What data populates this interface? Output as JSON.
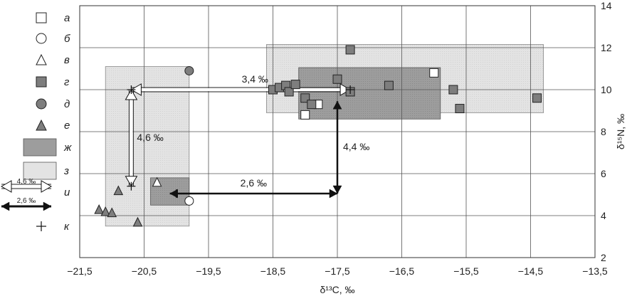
{
  "chart_data": {
    "type": "scatter",
    "xlabel": "δ¹³C, ‰",
    "ylabel": "δ¹⁵N, ‰",
    "xlim": [
      -21.5,
      -13.5
    ],
    "ylim": [
      2,
      14
    ],
    "x_ticks": [
      "−21,5",
      "−20,5",
      "−19,5",
      "−18,5",
      "−17,5",
      "−16,5",
      "−15,5",
      "−14,5",
      "−13,5"
    ],
    "y_ticks": [
      "2",
      "4",
      "6",
      "8",
      "10",
      "12",
      "14"
    ],
    "grid": true,
    "legend_position": "left-outside",
    "legend": [
      {
        "label": "а",
        "symbol": "open-square"
      },
      {
        "label": "б",
        "symbol": "open-circle"
      },
      {
        "label": "в",
        "symbol": "open-triangle"
      },
      {
        "label": "г",
        "symbol": "filled-square"
      },
      {
        "label": "д",
        "symbol": "filled-circle"
      },
      {
        "label": "е",
        "symbol": "filled-triangle"
      },
      {
        "label": "ж",
        "symbol": "dark-box"
      },
      {
        "label": "з",
        "symbol": "light-box"
      },
      {
        "label": "и",
        "symbol": "arrows",
        "arrow_labels": [
          "4,6 ‰",
          "2,6 ‰"
        ]
      },
      {
        "label": "к",
        "symbol": "cross"
      }
    ],
    "series": [
      {
        "name": "а",
        "marker": "open-square",
        "points": [
          [
            -16.0,
            10.8
          ],
          [
            -18.0,
            8.8
          ],
          [
            -17.8,
            9.3
          ]
        ]
      },
      {
        "name": "б",
        "marker": "open-circle",
        "points": [
          [
            -19.8,
            4.7
          ]
        ]
      },
      {
        "name": "в",
        "marker": "open-triangle",
        "points": [
          [
            -20.3,
            5.6
          ]
        ]
      },
      {
        "name": "г",
        "marker": "filled-square",
        "points": [
          [
            -18.5,
            10.0
          ],
          [
            -18.4,
            10.1
          ],
          [
            -18.3,
            10.2
          ],
          [
            -18.25,
            9.9
          ],
          [
            -18.15,
            10.25
          ],
          [
            -18.0,
            9.6
          ],
          [
            -17.9,
            9.3
          ],
          [
            -17.5,
            10.5
          ],
          [
            -17.3,
            11.9
          ],
          [
            -17.3,
            9.9
          ],
          [
            -16.7,
            10.2
          ],
          [
            -15.7,
            10.0
          ],
          [
            -15.6,
            9.1
          ],
          [
            -14.4,
            9.6
          ]
        ]
      },
      {
        "name": "д",
        "marker": "filled-circle",
        "points": [
          [
            -19.8,
            10.9
          ]
        ]
      },
      {
        "name": "е",
        "marker": "filled-triangle",
        "points": [
          [
            -21.2,
            4.3
          ],
          [
            -21.1,
            4.2
          ],
          [
            -21.0,
            4.15
          ],
          [
            -20.9,
            5.2
          ],
          [
            -20.6,
            3.7
          ]
        ]
      },
      {
        "name": "к",
        "marker": "cross",
        "points": [
          [
            -20.7,
            5.4
          ],
          [
            -20.0,
            5.05
          ],
          [
            -17.3,
            10.0
          ],
          [
            -20.7,
            10.0
          ]
        ]
      }
    ],
    "boxes": [
      {
        "name": "з",
        "style": "light",
        "x": [
          -21.1,
          -19.8
        ],
        "y": [
          3.5,
          11.1
        ]
      },
      {
        "name": "з",
        "style": "light",
        "x": [
          -18.6,
          -14.3
        ],
        "y": [
          8.9,
          12.15
        ]
      },
      {
        "name": "ж",
        "style": "dark",
        "x": [
          -20.4,
          -19.8
        ],
        "y": [
          4.5,
          5.8
        ]
      },
      {
        "name": "ж",
        "style": "dark",
        "x": [
          -18.1,
          -15.9
        ],
        "y": [
          8.6,
          11.05
        ]
      }
    ],
    "arrows": [
      {
        "label": "3,4 ‰",
        "style": "open",
        "from": [
          -20.7,
          10.0
        ],
        "to": [
          -17.3,
          10.0
        ]
      },
      {
        "label": "4,6 ‰",
        "style": "open",
        "from": [
          -20.7,
          5.4
        ],
        "to": [
          -20.7,
          10.0
        ]
      },
      {
        "label": "2,6 ‰",
        "style": "solid",
        "from": [
          -20.1,
          5.05
        ],
        "to": [
          -17.5,
          5.05
        ]
      },
      {
        "label": "4,4 ‰",
        "style": "solid",
        "from": [
          -17.5,
          5.05
        ],
        "to": [
          -17.5,
          9.45
        ]
      }
    ]
  }
}
